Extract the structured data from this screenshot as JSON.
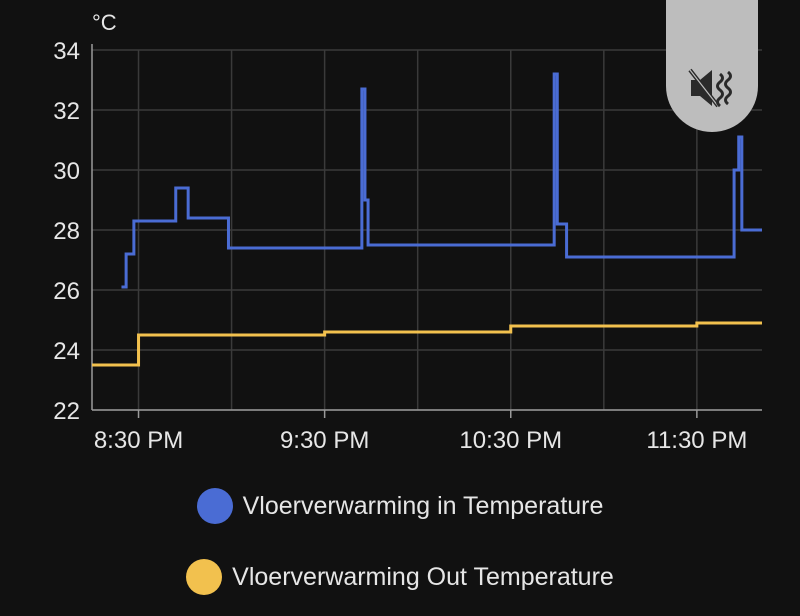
{
  "chart_data": {
    "type": "line",
    "unit": "°C",
    "ylim": [
      22,
      34
    ],
    "yticks": [
      "22",
      "24",
      "26",
      "28",
      "30",
      "32",
      "34"
    ],
    "xticks": [
      "8:30 PM",
      "9:30 PM",
      "10:30 PM",
      "11:30 PM"
    ],
    "xtick_minutes": [
      30,
      90,
      150,
      210
    ],
    "xlim_minutes": [
      15,
      231
    ],
    "grid": true,
    "series": [
      {
        "name": "Vloerverwarming in Temperature",
        "color": "#4a6cd4",
        "step": true,
        "points": [
          [
            24.5,
            26.1
          ],
          [
            26,
            27.2
          ],
          [
            28.5,
            28.3
          ],
          [
            42,
            29.4
          ],
          [
            46,
            28.4
          ],
          [
            59,
            27.4
          ],
          [
            102,
            32.7
          ],
          [
            103,
            29.0
          ],
          [
            104,
            27.5
          ],
          [
            164,
            33.2
          ],
          [
            165,
            28.2
          ],
          [
            168,
            27.1
          ],
          [
            222,
            30.0
          ],
          [
            223.5,
            31.1
          ],
          [
            224.5,
            28.0
          ],
          [
            231,
            28.0
          ]
        ]
      },
      {
        "name": "Vloerverwarming Out Temperature",
        "color": "#f2c14e",
        "step": true,
        "points": [
          [
            15,
            23.5
          ],
          [
            30,
            24.5
          ],
          [
            90,
            24.6
          ],
          [
            150,
            24.8
          ],
          [
            210,
            24.9
          ],
          [
            231,
            24.9
          ]
        ]
      }
    ]
  },
  "legend": {
    "in_label": "Vloerverwarming in Temperature",
    "out_label": "Vloerverwarming Out Temperature",
    "in_color": "#4a6cd4",
    "out_color": "#f2c14e"
  },
  "mute_button": {
    "icon": "volume-off-icon"
  }
}
